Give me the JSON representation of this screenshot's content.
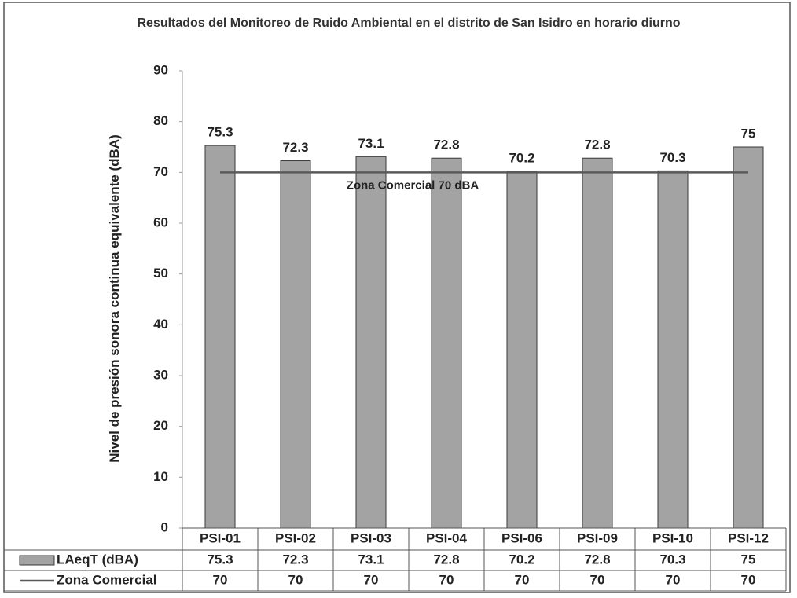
{
  "chart_data": {
    "type": "bar",
    "title": "Resultados del Monitoreo de Ruido Ambiental  en el distrito de San Isidro en horario diurno",
    "ylabel": "Nivel de presión sonora continua equivalente (dBA)",
    "annotation": "Zona Comercial 70 dBA",
    "categories": [
      "PSI-01",
      "PSI-02",
      "PSI-03",
      "PSI-04",
      "PSI-06",
      "PSI-09",
      "PSI-10",
      "PSI-12"
    ],
    "series": [
      {
        "name": "LAeqT (dBA)",
        "type": "bar",
        "color": "#a3a3a3",
        "values": [
          75.3,
          72.3,
          73.1,
          72.8,
          70.2,
          72.8,
          70.3,
          75
        ]
      },
      {
        "name": "Zona Comercial",
        "type": "line",
        "color": "#5a5a5a",
        "values": [
          70,
          70,
          70,
          70,
          70,
          70,
          70,
          70
        ]
      }
    ],
    "ylim": [
      0,
      90
    ],
    "yticks": [
      0,
      10,
      20,
      30,
      40,
      50,
      60,
      70,
      80,
      90
    ],
    "grid": false,
    "data_table": true
  }
}
